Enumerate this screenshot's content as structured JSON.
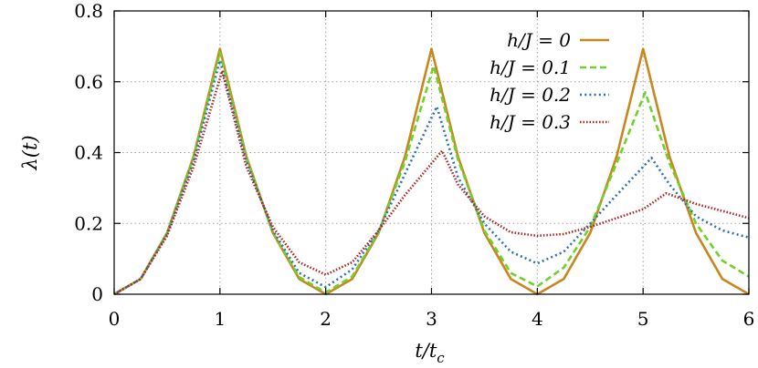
{
  "chart_data": {
    "type": "line",
    "xlabel": "t/t_c",
    "xlabel_main": "t/t",
    "xlabel_sub": "c",
    "ylabel": "λ(t)",
    "xlim": [
      0,
      6
    ],
    "ylim": [
      0,
      0.8
    ],
    "xticks": [
      0,
      1,
      2,
      3,
      4,
      5,
      6
    ],
    "xtick_labels": [
      "0",
      "1",
      "2",
      "3",
      "4",
      "5",
      "6"
    ],
    "yticks": [
      0,
      0.2,
      0.4,
      0.6,
      0.8
    ],
    "ytick_labels": [
      "0",
      "0.2",
      "0.4",
      "0.6",
      "0.8"
    ],
    "grid": true,
    "legend_position": "top-right",
    "series": [
      {
        "name": "h/J = 0",
        "color": "#c8861f",
        "dash": "solid",
        "x": [
          0,
          0.25,
          0.5,
          0.75,
          1.0,
          1.25,
          1.5,
          1.75,
          2.0,
          2.25,
          2.5,
          2.75,
          3.0,
          3.25,
          3.5,
          3.75,
          4.0,
          4.25,
          4.5,
          4.75,
          5.0,
          5.25,
          5.5,
          5.75,
          6.0
        ],
        "y": [
          0,
          0.043,
          0.173,
          0.389,
          0.693,
          0.389,
          0.173,
          0.043,
          0,
          0.043,
          0.173,
          0.389,
          0.693,
          0.389,
          0.173,
          0.043,
          0,
          0.043,
          0.173,
          0.389,
          0.693,
          0.389,
          0.173,
          0.043,
          0
        ]
      },
      {
        "name": "h/J = 0.1",
        "color": "#6fd12a",
        "dash": "dashed",
        "x": [
          0,
          0.25,
          0.5,
          0.75,
          1.0,
          1.25,
          1.5,
          1.75,
          2.0,
          2.25,
          2.5,
          2.75,
          3.02,
          3.25,
          3.5,
          3.75,
          4.0,
          4.25,
          4.5,
          4.75,
          5.02,
          5.25,
          5.5,
          5.75,
          6.0
        ],
        "y": [
          0,
          0.043,
          0.172,
          0.385,
          0.683,
          0.385,
          0.175,
          0.048,
          0.005,
          0.05,
          0.175,
          0.375,
          0.645,
          0.38,
          0.18,
          0.06,
          0.022,
          0.075,
          0.19,
          0.37,
          0.57,
          0.37,
          0.2,
          0.095,
          0.05
        ]
      },
      {
        "name": "h/J = 0.2",
        "color": "#2e6fb5",
        "dash": "dotted",
        "x": [
          0,
          0.25,
          0.5,
          0.75,
          1.0,
          1.25,
          1.5,
          1.75,
          2.0,
          2.25,
          2.5,
          2.75,
          3.05,
          3.25,
          3.5,
          3.75,
          4.0,
          4.25,
          4.5,
          4.75,
          5.08,
          5.25,
          5.5,
          5.75,
          6.0
        ],
        "y": [
          0,
          0.043,
          0.17,
          0.375,
          0.66,
          0.375,
          0.18,
          0.06,
          0.02,
          0.07,
          0.18,
          0.34,
          0.53,
          0.33,
          0.2,
          0.12,
          0.087,
          0.12,
          0.2,
          0.28,
          0.385,
          0.31,
          0.22,
          0.18,
          0.16
        ]
      },
      {
        "name": "h/J = 0.3",
        "color": "#b22222",
        "dash": "densely-dotted",
        "x": [
          0,
          0.25,
          0.5,
          0.75,
          1.02,
          1.25,
          1.5,
          1.75,
          2.0,
          2.25,
          2.5,
          2.75,
          3.1,
          3.25,
          3.5,
          3.75,
          4.0,
          4.25,
          4.5,
          4.75,
          5.0,
          5.22,
          5.5,
          5.75,
          6.0
        ],
        "y": [
          0,
          0.043,
          0.165,
          0.36,
          0.63,
          0.36,
          0.19,
          0.09,
          0.055,
          0.09,
          0.18,
          0.28,
          0.405,
          0.31,
          0.22,
          0.175,
          0.165,
          0.17,
          0.19,
          0.215,
          0.24,
          0.285,
          0.255,
          0.235,
          0.215
        ]
      }
    ]
  }
}
